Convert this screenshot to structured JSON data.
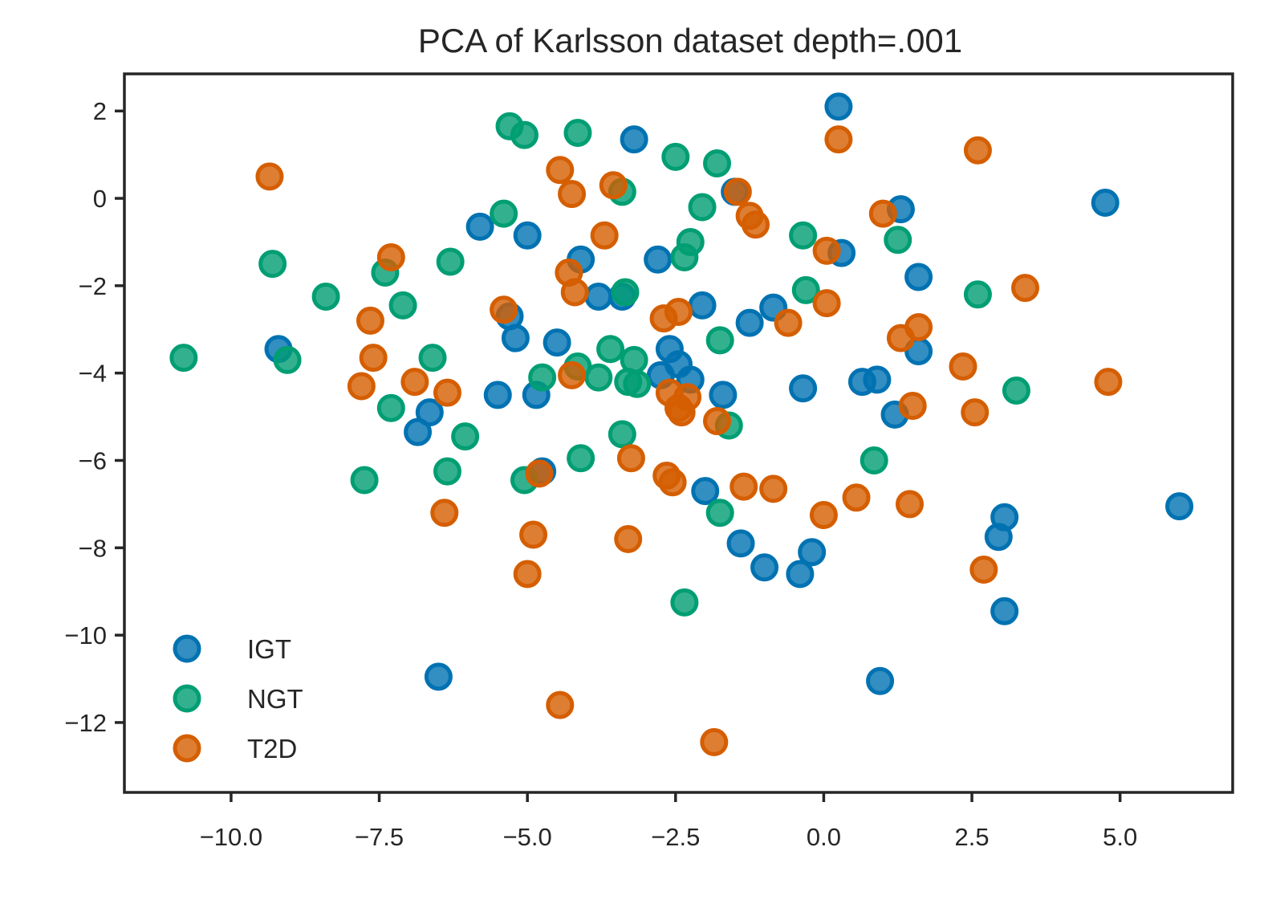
{
  "chart_data": {
    "type": "scatter",
    "title": "PCA of Karlsson dataset depth=.001",
    "xlabel": "",
    "ylabel": "",
    "xlim": [
      -11.8,
      6.9
    ],
    "ylim": [
      -13.6,
      2.85
    ],
    "x_ticks": [
      {
        "value": -10.0,
        "label": "−10.0"
      },
      {
        "value": -7.5,
        "label": "−7.5"
      },
      {
        "value": -5.0,
        "label": "−5.0"
      },
      {
        "value": -2.5,
        "label": "−2.5"
      },
      {
        "value": 0.0,
        "label": "0.0"
      },
      {
        "value": 2.5,
        "label": "2.5"
      },
      {
        "value": 5.0,
        "label": "5.0"
      }
    ],
    "y_ticks": [
      {
        "value": 2,
        "label": "2"
      },
      {
        "value": 0,
        "label": "0"
      },
      {
        "value": -2,
        "label": "−2"
      },
      {
        "value": -4,
        "label": "−4"
      },
      {
        "value": -6,
        "label": "−6"
      },
      {
        "value": -8,
        "label": "−8"
      },
      {
        "value": -10,
        "label": "−10"
      },
      {
        "value": -12,
        "label": "−12"
      }
    ],
    "grid": false,
    "legend_position": "bottom-left",
    "series": [
      {
        "name": "IGT",
        "color": "#0072b2",
        "points": [
          [
            0.25,
            2.1
          ],
          [
            -3.2,
            1.35
          ],
          [
            4.75,
            -0.1
          ],
          [
            1.3,
            -0.25
          ],
          [
            -1.5,
            0.15
          ],
          [
            -5.8,
            -0.65
          ],
          [
            -5.0,
            -0.85
          ],
          [
            -4.1,
            -1.4
          ],
          [
            -2.8,
            -1.4
          ],
          [
            0.3,
            -1.25
          ],
          [
            1.6,
            -1.8
          ],
          [
            -3.8,
            -2.25
          ],
          [
            -3.4,
            -2.25
          ],
          [
            -2.05,
            -2.45
          ],
          [
            -0.85,
            -2.5
          ],
          [
            -5.3,
            -2.7
          ],
          [
            -1.25,
            -2.85
          ],
          [
            -9.2,
            -3.45
          ],
          [
            -5.2,
            -3.2
          ],
          [
            -4.5,
            -3.3
          ],
          [
            -2.6,
            -3.45
          ],
          [
            1.6,
            -3.5
          ],
          [
            -2.45,
            -3.8
          ],
          [
            -2.75,
            -4.05
          ],
          [
            -2.25,
            -4.15
          ],
          [
            -1.7,
            -4.5
          ],
          [
            -0.35,
            -4.35
          ],
          [
            0.65,
            -4.2
          ],
          [
            0.9,
            -4.15
          ],
          [
            -5.5,
            -4.5
          ],
          [
            -4.85,
            -4.5
          ],
          [
            1.2,
            -4.95
          ],
          [
            -6.65,
            -4.9
          ],
          [
            -6.85,
            -5.35
          ],
          [
            -4.75,
            -6.25
          ],
          [
            -2.0,
            -6.7
          ],
          [
            -1.4,
            -7.9
          ],
          [
            -1.0,
            -8.45
          ],
          [
            -0.2,
            -8.1
          ],
          [
            -0.4,
            -8.6
          ],
          [
            3.05,
            -7.3
          ],
          [
            2.95,
            -7.75
          ],
          [
            6.0,
            -7.05
          ],
          [
            3.05,
            -9.45
          ],
          [
            0.95,
            -11.05
          ],
          [
            -6.5,
            -10.95
          ]
        ]
      },
      {
        "name": "NGT",
        "color": "#009e73",
        "points": [
          [
            -5.3,
            1.65
          ],
          [
            -5.05,
            1.45
          ],
          [
            -4.15,
            1.5
          ],
          [
            -2.5,
            0.95
          ],
          [
            -1.8,
            0.8
          ],
          [
            -3.4,
            0.15
          ],
          [
            -2.05,
            -0.2
          ],
          [
            -5.4,
            -0.35
          ],
          [
            -0.35,
            -0.85
          ],
          [
            -2.25,
            -1.0
          ],
          [
            1.25,
            -0.95
          ],
          [
            -9.3,
            -1.5
          ],
          [
            -6.3,
            -1.45
          ],
          [
            -2.35,
            -1.35
          ],
          [
            -7.4,
            -1.7
          ],
          [
            -8.4,
            -2.25
          ],
          [
            -7.1,
            -2.45
          ],
          [
            -3.35,
            -2.15
          ],
          [
            -0.3,
            -2.1
          ],
          [
            2.6,
            -2.2
          ],
          [
            -1.75,
            -3.25
          ],
          [
            -10.8,
            -3.65
          ],
          [
            -9.05,
            -3.7
          ],
          [
            -6.6,
            -3.65
          ],
          [
            -3.6,
            -3.45
          ],
          [
            -3.2,
            -3.7
          ],
          [
            -4.15,
            -3.85
          ],
          [
            -4.75,
            -4.1
          ],
          [
            -3.8,
            -4.1
          ],
          [
            -3.3,
            -4.2
          ],
          [
            -3.15,
            -4.25
          ],
          [
            3.25,
            -4.4
          ],
          [
            -7.3,
            -4.8
          ],
          [
            -6.05,
            -5.45
          ],
          [
            -3.4,
            -5.4
          ],
          [
            -1.6,
            -5.2
          ],
          [
            -4.1,
            -5.95
          ],
          [
            0.85,
            -6.0
          ],
          [
            -7.75,
            -6.45
          ],
          [
            -6.35,
            -6.25
          ],
          [
            -5.05,
            -6.45
          ],
          [
            -1.75,
            -7.2
          ],
          [
            -2.35,
            -9.25
          ]
        ]
      },
      {
        "name": "T2D",
        "color": "#d55e00",
        "points": [
          [
            -9.35,
            0.5
          ],
          [
            -4.45,
            0.65
          ],
          [
            -4.25,
            0.1
          ],
          [
            -3.55,
            0.3
          ],
          [
            -1.45,
            0.15
          ],
          [
            0.25,
            1.35
          ],
          [
            2.6,
            1.1
          ],
          [
            -1.25,
            -0.4
          ],
          [
            -1.15,
            -0.6
          ],
          [
            1.0,
            -0.35
          ],
          [
            -3.7,
            -0.85
          ],
          [
            -7.3,
            -1.35
          ],
          [
            0.05,
            -1.2
          ],
          [
            -4.3,
            -1.7
          ],
          [
            -4.2,
            -2.15
          ],
          [
            3.4,
            -2.05
          ],
          [
            -5.4,
            -2.55
          ],
          [
            -2.45,
            -2.6
          ],
          [
            -2.7,
            -2.75
          ],
          [
            -7.65,
            -2.8
          ],
          [
            -0.6,
            -2.85
          ],
          [
            0.05,
            -2.4
          ],
          [
            1.6,
            -2.95
          ],
          [
            1.3,
            -3.2
          ],
          [
            -7.6,
            -3.65
          ],
          [
            -7.8,
            -4.3
          ],
          [
            -6.9,
            -4.2
          ],
          [
            -6.35,
            -4.45
          ],
          [
            -4.25,
            -4.05
          ],
          [
            -2.6,
            -4.45
          ],
          [
            -2.3,
            -4.55
          ],
          [
            -2.45,
            -4.8
          ],
          [
            -2.4,
            -4.9
          ],
          [
            1.5,
            -4.75
          ],
          [
            2.35,
            -3.85
          ],
          [
            2.55,
            -4.9
          ],
          [
            4.8,
            -4.2
          ],
          [
            -1.8,
            -5.1
          ],
          [
            -3.25,
            -5.95
          ],
          [
            -4.8,
            -6.3
          ],
          [
            -2.65,
            -6.35
          ],
          [
            -2.55,
            -6.5
          ],
          [
            -1.35,
            -6.6
          ],
          [
            -0.85,
            -6.65
          ],
          [
            0.55,
            -6.85
          ],
          [
            1.45,
            -7.0
          ],
          [
            0.0,
            -7.25
          ],
          [
            -6.4,
            -7.2
          ],
          [
            -4.9,
            -7.7
          ],
          [
            -3.3,
            -7.8
          ],
          [
            -5.0,
            -8.6
          ],
          [
            2.7,
            -8.5
          ],
          [
            -4.45,
            -11.6
          ],
          [
            -1.85,
            -12.45
          ]
        ]
      }
    ]
  }
}
